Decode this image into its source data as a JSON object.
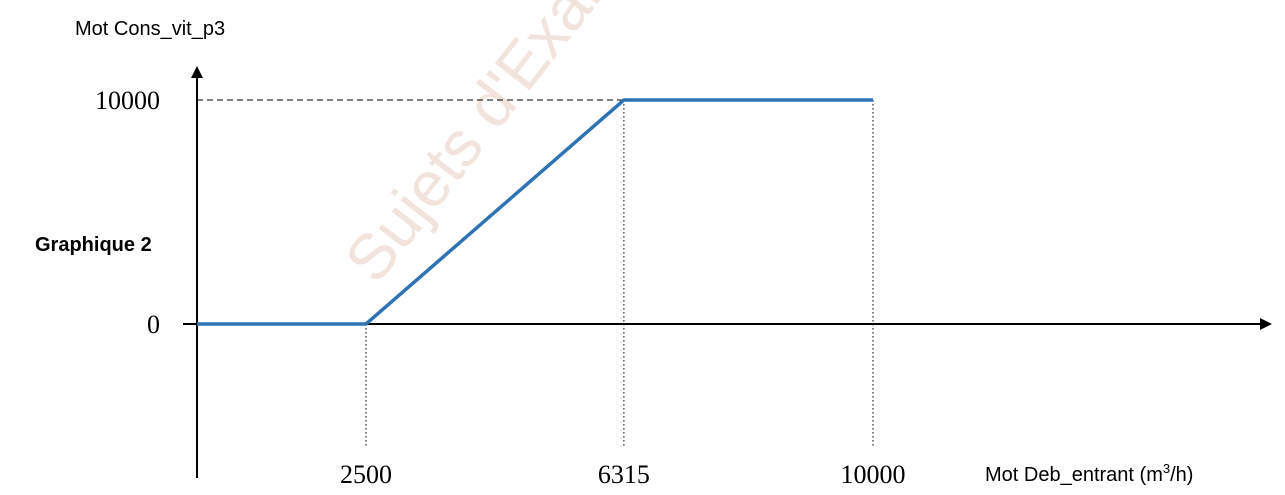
{
  "panel_label": "Graphique 2",
  "watermark": "Sujets d'Examens de l'enseignement",
  "colors": {
    "line": "#2e74b5",
    "axis": "#000000",
    "guide": "#000000",
    "watermark": "#f2e3dc"
  },
  "chart_data": {
    "type": "line",
    "ylabel": "Mot Cons_vit_p3",
    "xlabel": {
      "prefix": "Mot Deb_entrant (m",
      "superscript": "3",
      "suffix": "/h)"
    },
    "x_ticks": [
      "2500",
      "6315",
      "10000"
    ],
    "y_ticks": [
      "0",
      "10000"
    ],
    "series": [
      {
        "x": [
          0,
          2500,
          6315,
          10000
        ],
        "y": [
          0,
          0,
          10000,
          10000
        ]
      }
    ],
    "xlim": [
      0,
      13000
    ],
    "ylim": [
      -5000,
      10000
    ],
    "grid": false,
    "guides": "dashed lines from breakpoints to axes"
  }
}
